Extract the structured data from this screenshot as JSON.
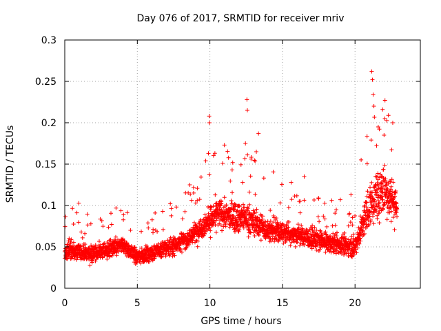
{
  "chart_data": {
    "type": "scatter",
    "title": "Day 076 of 2017, SRMTID for receiver mriv",
    "xlabel": "GPS time / hours",
    "ylabel": "SRMTID / TECUs",
    "xlim": [
      0,
      24.5
    ],
    "ylim": [
      0,
      0.3
    ],
    "x_ticks": [
      0,
      5,
      10,
      15,
      20
    ],
    "x_tick_labels": [
      "0",
      "5",
      "10",
      "15",
      "20"
    ],
    "y_ticks": [
      0,
      0.05,
      0.1,
      0.15,
      0.2,
      0.25,
      0.3
    ],
    "y_tick_labels": [
      "0",
      "0.05",
      "0.1",
      "0.15",
      "0.2",
      "0.25",
      "0.3"
    ],
    "grid": true,
    "marker": "+",
    "color": "#ff0000",
    "series": [
      {
        "name": "SRMTID",
        "x_range": [
          0,
          22.9
        ],
        "sample_step_hours": 0.0083,
        "trend": [
          {
            "x": 0.0,
            "center": 0.045,
            "spread": 0.018
          },
          {
            "x": 2.0,
            "center": 0.042,
            "spread": 0.018
          },
          {
            "x": 4.0,
            "center": 0.052,
            "spread": 0.018
          },
          {
            "x": 5.0,
            "center": 0.038,
            "spread": 0.016
          },
          {
            "x": 6.5,
            "center": 0.045,
            "spread": 0.018
          },
          {
            "x": 8.5,
            "center": 0.06,
            "spread": 0.02
          },
          {
            "x": 9.5,
            "center": 0.075,
            "spread": 0.025
          },
          {
            "x": 10.5,
            "center": 0.09,
            "spread": 0.03
          },
          {
            "x": 12.5,
            "center": 0.085,
            "spread": 0.03
          },
          {
            "x": 14.0,
            "center": 0.07,
            "spread": 0.025
          },
          {
            "x": 16.0,
            "center": 0.065,
            "spread": 0.022
          },
          {
            "x": 18.0,
            "center": 0.055,
            "spread": 0.02
          },
          {
            "x": 20.0,
            "center": 0.05,
            "spread": 0.02
          },
          {
            "x": 21.0,
            "center": 0.1,
            "spread": 0.045
          },
          {
            "x": 22.0,
            "center": 0.12,
            "spread": 0.05
          },
          {
            "x": 22.9,
            "center": 0.1,
            "spread": 0.045
          }
        ],
        "peaks": [
          {
            "x": 9.95,
            "y": 0.208
          },
          {
            "x": 9.97,
            "y": 0.2
          },
          {
            "x": 9.9,
            "y": 0.163
          },
          {
            "x": 11.0,
            "y": 0.173
          },
          {
            "x": 12.55,
            "y": 0.228
          },
          {
            "x": 12.58,
            "y": 0.215
          },
          {
            "x": 12.45,
            "y": 0.175
          },
          {
            "x": 13.35,
            "y": 0.187
          },
          {
            "x": 13.2,
            "y": 0.165
          },
          {
            "x": 16.5,
            "y": 0.135
          },
          {
            "x": 21.15,
            "y": 0.262
          },
          {
            "x": 21.2,
            "y": 0.252
          },
          {
            "x": 21.25,
            "y": 0.234
          },
          {
            "x": 21.3,
            "y": 0.22
          },
          {
            "x": 21.9,
            "y": 0.216
          },
          {
            "x": 22.3,
            "y": 0.209
          },
          {
            "x": 22.6,
            "y": 0.2
          },
          {
            "x": 21.6,
            "y": 0.195
          },
          {
            "x": 22.0,
            "y": 0.185
          }
        ]
      }
    ]
  }
}
